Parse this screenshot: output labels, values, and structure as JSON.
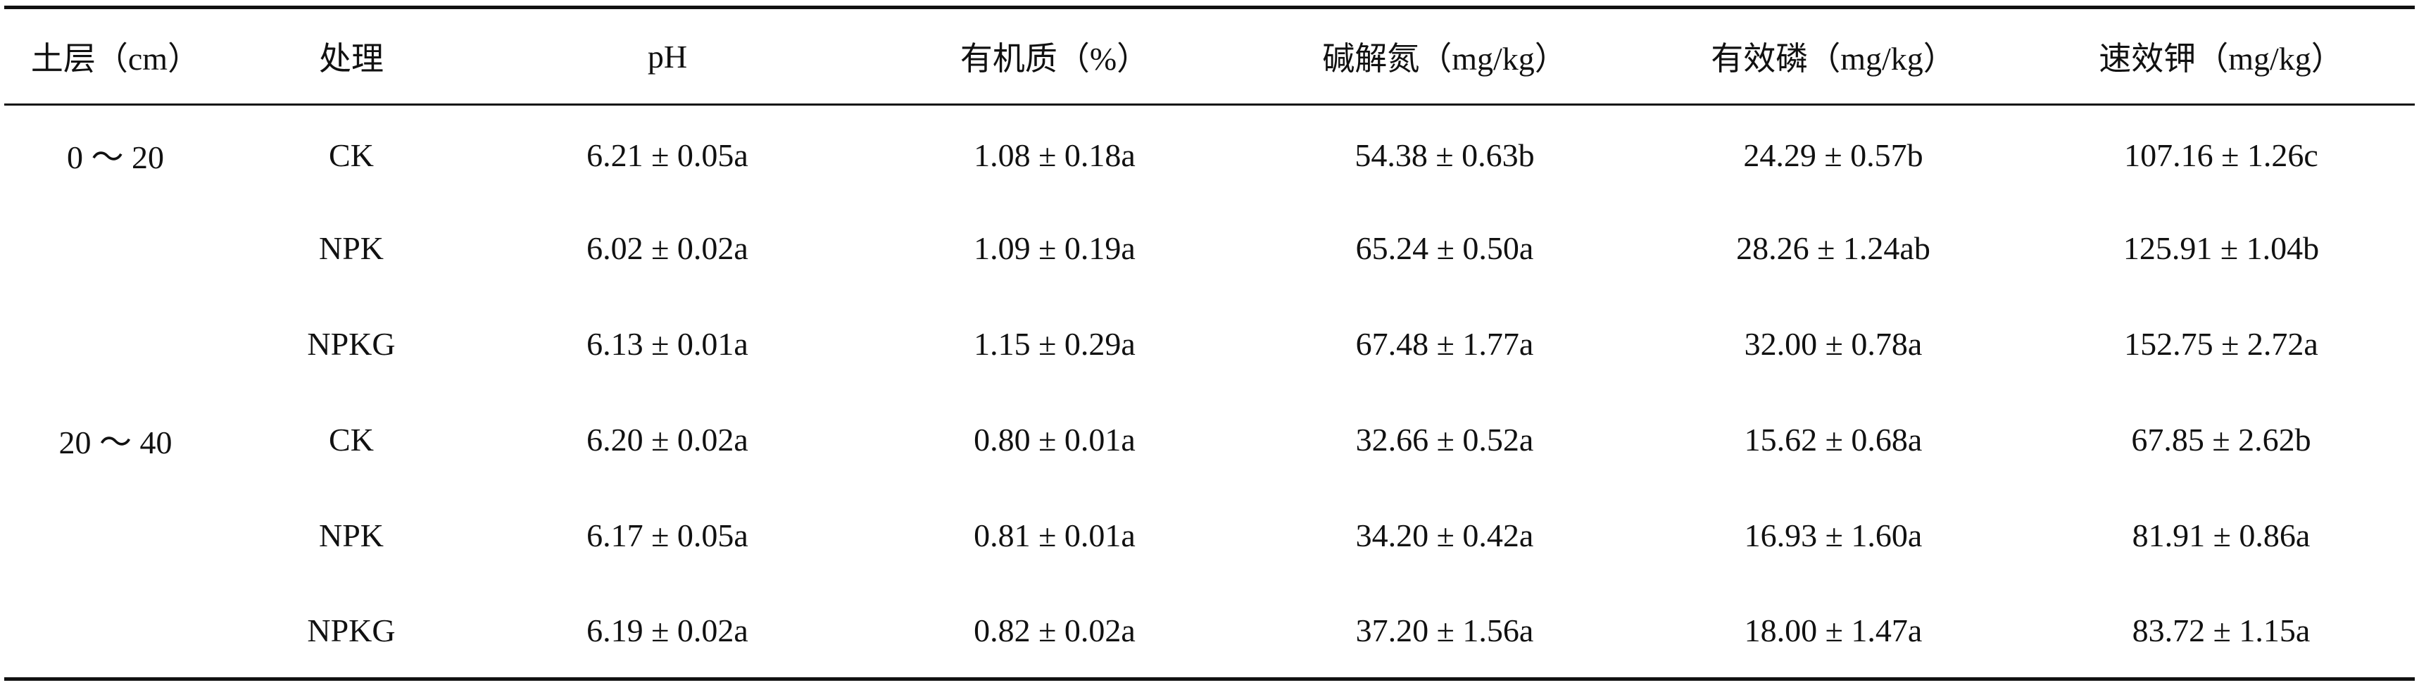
{
  "table": {
    "headers": [
      "土层（cm）",
      "处理",
      "pH",
      "有机质（%）",
      "碱解氮（mg/kg）",
      "有效磷（mg/kg）",
      "速效钾（mg/kg）"
    ],
    "rows": [
      [
        "0 ～ 20",
        "CK",
        "6.21 ± 0.05a",
        "1.08 ± 0.18a",
        "54.38 ± 0.63b",
        "24.29 ± 0.57b",
        "107.16 ± 1.26c"
      ],
      [
        "",
        "NPK",
        "6.02 ± 0.02a",
        "1.09 ± 0.19a",
        "65.24 ± 0.50a",
        "28.26 ± 1.24ab",
        "125.91 ± 1.04b"
      ],
      [
        "",
        "NPKG",
        "6.13 ± 0.01a",
        "1.15 ± 0.29a",
        "67.48 ± 1.77a",
        "32.00 ± 0.78a",
        "152.75 ± 2.72a"
      ],
      [
        "20 ～ 40",
        "CK",
        "6.20 ± 0.02a",
        "0.80 ± 0.01a",
        "32.66 ± 0.52a",
        "15.62 ± 0.68a",
        "67.85 ± 2.62b"
      ],
      [
        "",
        "NPK",
        "6.17 ± 0.05a",
        "0.81 ± 0.01a",
        "34.20 ± 0.42a",
        "16.93 ± 1.60a",
        "81.91 ± 0.86a"
      ],
      [
        "",
        "NPKG",
        "6.19 ± 0.02a",
        "0.82 ± 0.02a",
        "37.20 ± 1.56a",
        "18.00 ± 1.47a",
        "83.72 ± 1.15a"
      ]
    ]
  }
}
